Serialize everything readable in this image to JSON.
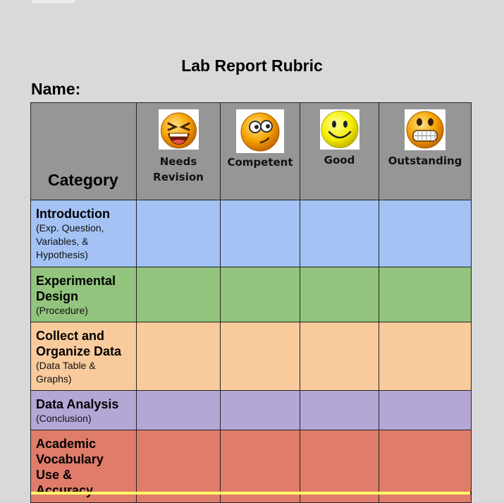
{
  "document": {
    "title": "Lab Report Rubric",
    "name_label": "Name:"
  },
  "rubric": {
    "category_header": "Category",
    "levels": [
      {
        "label_line1": "Needs",
        "label_line2": "Revision",
        "icon": "laughing-face-icon"
      },
      {
        "label_line1": "Competent",
        "label_line2": "",
        "icon": "confused-face-icon"
      },
      {
        "label_line1": "Good",
        "label_line2": "",
        "icon": "smiley-face-icon"
      },
      {
        "label_line1": "Outstanding",
        "label_line2": "",
        "icon": "grinning-face-icon"
      }
    ],
    "rows": [
      {
        "name": "Introduction",
        "sub_lines": [
          "(Exp. Question,",
          "Variables, &",
          "Hypothesis)"
        ],
        "color": "#a4c2f4"
      },
      {
        "name_lines": [
          "Experimental",
          "Design"
        ],
        "sub_lines": [
          "(Procedure)"
        ],
        "color": "#93c47d"
      },
      {
        "name_lines": [
          "Collect and",
          "Organize Data"
        ],
        "sub_lines": [
          "(Data Table &",
          "Graphs)"
        ],
        "color": "#f9cb9c"
      },
      {
        "name": "Data Analysis",
        "sub_lines": [
          "(Conclusion)"
        ],
        "color": "#b4a7d6"
      },
      {
        "name_lines": [
          "Academic",
          "Vocabulary",
          "Use &",
          "Accuracy"
        ],
        "sub_lines": [],
        "color": "#e07c6a"
      }
    ],
    "next_row_color": "#ffff66"
  }
}
